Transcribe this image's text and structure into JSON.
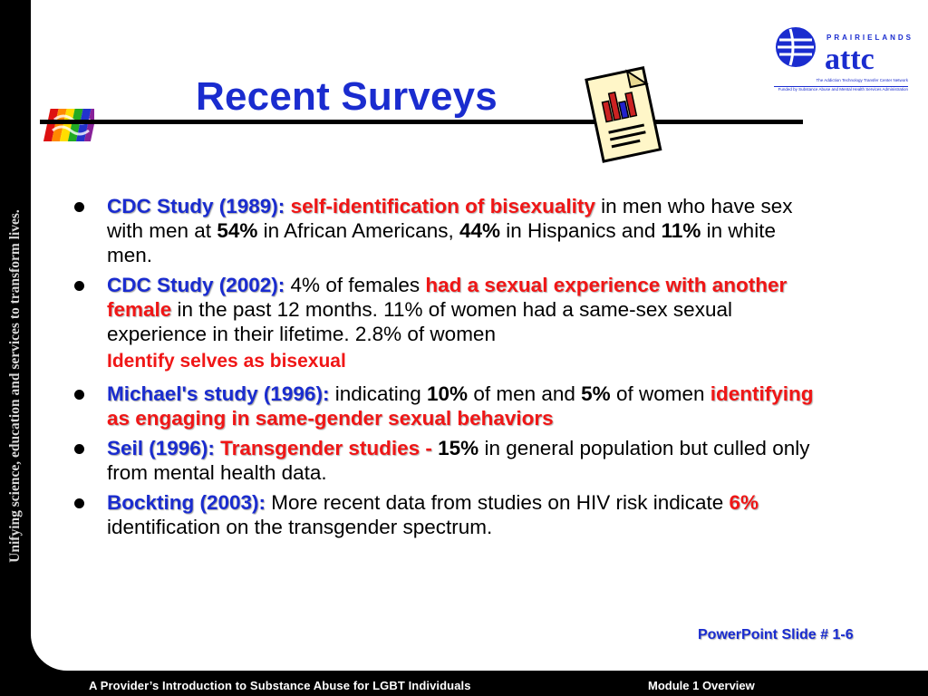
{
  "side_text": "Unifying science, education and services to transform lives.",
  "title": "Recent Surveys",
  "logo": {
    "top": "PRAIRIELANDS",
    "main": "attc",
    "line1": "The Addiction Technology Transfer Center Network",
    "line2": "Funded by Substance Abuse and Mental Health Services Administration"
  },
  "bullets": [
    {
      "lead": "CDC Study (1989):",
      "hl1": "self-identification of bisexuality",
      "t1": " in men who have sex with men at ",
      "n1": "54%",
      "t2": " in African Americans, ",
      "n2": "44%",
      "t3": " in Hispanics and ",
      "n3": "11%",
      "t4": " in white men."
    },
    {
      "lead": "CDC Study (2002):",
      "t1": " 4% of females ",
      "hl1": "had a sexual experience with another female",
      "t2": " in the past 12 months. 11% of women had a same-sex sexual experience in their lifetime. 2.8% of women ",
      "hl2": "Identify selves as bisexual"
    },
    {
      "lead": "Michael's study (1996):",
      "t1": "  indicating ",
      "n1": "10%",
      "t2": " of men and ",
      "n2": "5%",
      "t3": " of women ",
      "hl1": "identifying as engaging in same-gender sexual behaviors"
    },
    {
      "lead": "Seil (1996):",
      "hl1": "Transgender studies",
      "sep": " - ",
      "n1": "15%",
      "t1": " in general population but culled only from mental health data."
    },
    {
      "lead": "Bockting (2003):",
      "t1": "  More recent data from studies on HIV risk indicate ",
      "hl1": "6%",
      "t2": " identification on the transgender spectrum."
    }
  ],
  "slide_number": "PowerPoint Slide # 1-6",
  "footer": {
    "left": "A Provider’s Introduction to Substance Abuse for LGBT Individuals",
    "right": "Module 1 Overview"
  },
  "colors": {
    "blue": "#1a2ccf",
    "red": "#f01616",
    "band": "#000000"
  }
}
